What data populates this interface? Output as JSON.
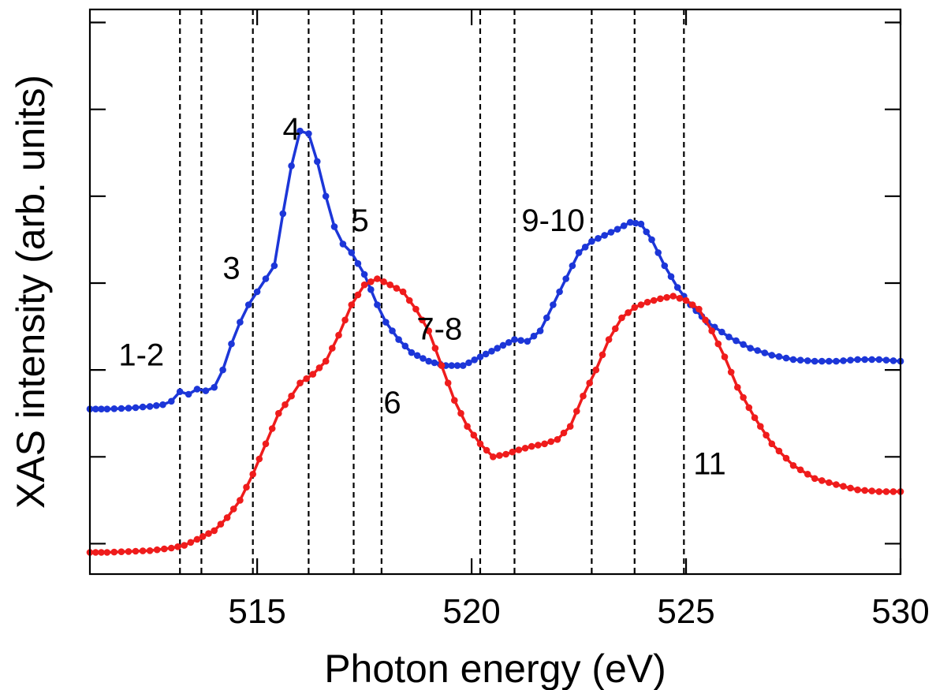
{
  "chart_data": {
    "type": "line",
    "xlabel": "Photon energy (eV)",
    "ylabel": "XAS intensity (arb. units)",
    "xlim": [
      511.1,
      530.0
    ],
    "ylim": [
      -0.35,
      6.15
    ],
    "xticks": [
      515,
      520,
      525,
      530
    ],
    "ytick_count": 7,
    "ytick_labels_shown": false,
    "vertical_dashed_lines": [
      513.2,
      513.7,
      514.9,
      516.2,
      517.25,
      517.9,
      520.2,
      521.0,
      522.8,
      523.8,
      524.95
    ],
    "peak_labels": [
      {
        "text": "1-2",
        "x": 512.3,
        "y": 2.05
      },
      {
        "text": "3",
        "x": 514.4,
        "y": 3.05
      },
      {
        "text": "4",
        "x": 515.8,
        "y": 4.65
      },
      {
        "text": "5",
        "x": 517.4,
        "y": 3.6
      },
      {
        "text": "6",
        "x": 518.15,
        "y": 1.5
      },
      {
        "text": "7-8",
        "x": 519.25,
        "y": 2.35
      },
      {
        "text": "9-10",
        "x": 521.9,
        "y": 3.6
      },
      {
        "text": "11",
        "x": 525.55,
        "y": 0.8
      }
    ],
    "series": [
      {
        "color": "#1c36d8",
        "x": [
          511.1,
          511.5,
          512.0,
          512.5,
          512.8,
          513.0,
          513.2,
          513.4,
          513.6,
          513.8,
          514.0,
          514.2,
          514.4,
          514.6,
          514.8,
          515.0,
          515.2,
          515.4,
          515.6,
          515.8,
          516.0,
          516.2,
          516.4,
          516.6,
          516.8,
          517.0,
          517.2,
          517.5,
          517.8,
          518.0,
          518.3,
          518.6,
          519.0,
          519.4,
          519.8,
          520.2,
          520.6,
          521.0,
          521.3,
          521.6,
          521.9,
          522.2,
          522.5,
          522.8,
          523.1,
          523.4,
          523.7,
          523.95,
          524.2,
          524.5,
          524.8,
          525.1,
          525.5,
          526.0,
          526.5,
          527.0,
          527.5,
          528.0,
          528.5,
          529.0,
          529.5,
          530.0
        ],
        "values": [
          1.55,
          1.55,
          1.56,
          1.58,
          1.6,
          1.64,
          1.75,
          1.72,
          1.78,
          1.76,
          1.8,
          2.0,
          2.3,
          2.55,
          2.75,
          2.9,
          3.05,
          3.2,
          3.8,
          4.35,
          4.75,
          4.72,
          4.4,
          4.0,
          3.65,
          3.45,
          3.35,
          3.1,
          2.75,
          2.55,
          2.35,
          2.2,
          2.1,
          2.05,
          2.05,
          2.15,
          2.25,
          2.35,
          2.33,
          2.45,
          2.75,
          3.05,
          3.35,
          3.48,
          3.55,
          3.62,
          3.7,
          3.68,
          3.5,
          3.2,
          2.95,
          2.75,
          2.55,
          2.38,
          2.25,
          2.17,
          2.12,
          2.1,
          2.1,
          2.12,
          2.12,
          2.1
        ]
      },
      {
        "color": "#ef1c1c",
        "x": [
          511.1,
          511.5,
          512.0,
          512.5,
          513.0,
          513.3,
          513.6,
          514.0,
          514.3,
          514.6,
          514.9,
          515.2,
          515.5,
          515.8,
          516.0,
          516.3,
          516.6,
          516.9,
          517.2,
          517.5,
          517.8,
          518.1,
          518.4,
          518.7,
          519.0,
          519.3,
          519.6,
          519.9,
          520.2,
          520.5,
          520.8,
          521.1,
          521.4,
          521.7,
          522.0,
          522.3,
          522.6,
          522.9,
          523.2,
          523.5,
          523.8,
          524.1,
          524.4,
          524.7,
          525.0,
          525.3,
          525.6,
          525.9,
          526.2,
          526.6,
          527.0,
          527.5,
          528.0,
          528.5,
          529.0,
          529.5,
          530.0
        ],
        "values": [
          -0.1,
          -0.1,
          -0.09,
          -0.08,
          -0.05,
          -0.02,
          0.05,
          0.15,
          0.3,
          0.5,
          0.8,
          1.15,
          1.5,
          1.7,
          1.85,
          1.95,
          2.1,
          2.4,
          2.75,
          2.98,
          3.05,
          2.98,
          2.9,
          2.7,
          2.45,
          2.05,
          1.65,
          1.35,
          1.15,
          1.0,
          1.03,
          1.08,
          1.12,
          1.15,
          1.2,
          1.35,
          1.7,
          2.0,
          2.35,
          2.6,
          2.72,
          2.78,
          2.82,
          2.85,
          2.8,
          2.7,
          2.45,
          2.15,
          1.8,
          1.45,
          1.15,
          0.9,
          0.75,
          0.68,
          0.62,
          0.6,
          0.6
        ]
      }
    ]
  }
}
